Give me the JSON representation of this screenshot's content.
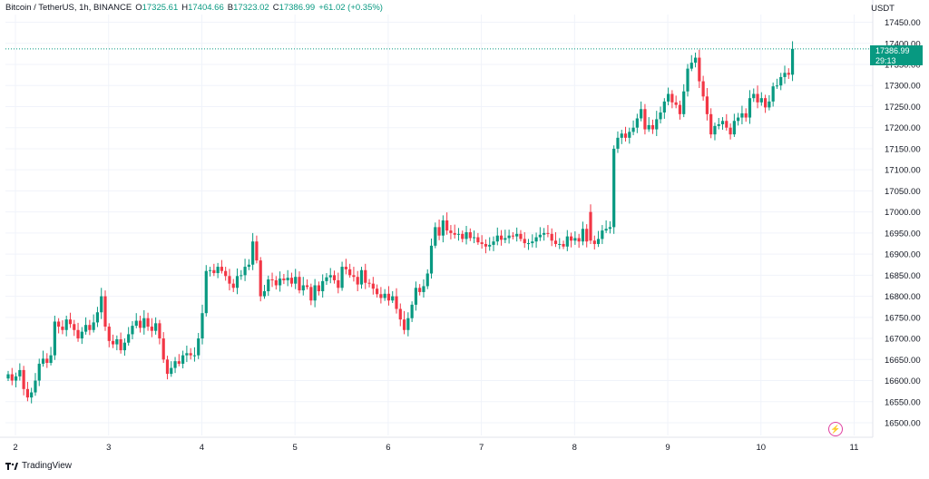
{
  "legend": {
    "symbol": "Bitcoin / TetherUS, 1h, BINANCE",
    "o_label": "O",
    "o": "17325.61",
    "h_label": "H",
    "h": "17404.66",
    "b_label": "B",
    "b": "17323.02",
    "c_label": "C",
    "c": "17386.99",
    "change": "+61.02 (+0.35%)"
  },
  "currency": "USDT",
  "price_tag": {
    "price": "17386.99",
    "countdown": "29:13"
  },
  "footer": {
    "brand": "TradingView"
  },
  "colors": {
    "up": "#089981",
    "down": "#f23645",
    "grid": "#f0f3fa",
    "price_line": "#089981",
    "axis_text": "#131722"
  },
  "chart_data": {
    "type": "candlestick",
    "title": "",
    "y_ticks": [
      "17450.00",
      "17400.00",
      "17350.00",
      "17300.00",
      "17250.00",
      "17200.00",
      "17150.00",
      "17100.00",
      "17050.00",
      "17000.00",
      "16950.00",
      "16900.00",
      "16850.00",
      "16800.00",
      "16750.00",
      "16700.00",
      "16650.00",
      "16600.00",
      "16550.00",
      "16500.00"
    ],
    "ylim": [
      16480,
      17480
    ],
    "x_ticks": [
      "2",
      "3",
      "4",
      "5",
      "6",
      "7",
      "8",
      "9",
      "10",
      "11"
    ],
    "x_tick_index": [
      0,
      24,
      48,
      72,
      96,
      120,
      144,
      168,
      192,
      216
    ],
    "last_price": 17386.99,
    "series": [
      {
        "close": [
          16615,
          16600,
          16610,
          16625,
          16580,
          16560,
          16572,
          16600,
          16640,
          16652,
          16642,
          16660,
          16740,
          16728,
          16720,
          16745,
          16734,
          16720,
          16700,
          16716,
          16732,
          16720,
          16738,
          16762,
          16800,
          16728,
          16694,
          16686,
          16698,
          16672,
          16690,
          16710,
          16730,
          16742,
          16725,
          16748,
          16728,
          16718,
          16736,
          16700,
          16650,
          16616,
          16630,
          16646,
          16640,
          16660,
          16665,
          16660,
          16660,
          16700,
          16760,
          16860,
          16862,
          16855,
          16870,
          16860,
          16848,
          16830,
          16820,
          16848,
          16850,
          16870,
          16875,
          16930,
          16885,
          16800,
          16812,
          16840,
          16838,
          16826,
          16842,
          16838,
          16844,
          16830,
          16846,
          16814,
          16826,
          16822,
          16790,
          16826,
          16812,
          16836,
          16845,
          16850,
          16838,
          16820,
          16870,
          16864,
          16850,
          16846,
          16828,
          16862,
          16832,
          16830,
          16818,
          16805,
          16796,
          16806,
          16790,
          16800,
          16770,
          16745,
          16720,
          16748,
          16780,
          16820,
          16810,
          16824,
          16854,
          16920,
          16964,
          16944,
          16980,
          16956,
          16950,
          16946,
          16948,
          16936,
          16952,
          16938,
          16940,
          16928,
          16924,
          16918,
          16922,
          16930,
          16944,
          16934,
          16938,
          16944,
          16942,
          16948,
          16936,
          16926,
          16926,
          16930,
          16940,
          16946,
          16950,
          16948,
          16932,
          16924,
          16924,
          16918,
          16942,
          16932,
          16938,
          16930,
          16960,
          16930,
          16932,
          16924,
          16936,
          16956,
          16960,
          16964,
          17150,
          17176,
          17186,
          17176,
          17190,
          17200,
          17222,
          17244,
          17196,
          17206,
          17196,
          17220,
          17236,
          17262,
          17280,
          17260,
          17254,
          17232,
          17286,
          17340,
          17354,
          17366,
          17310,
          17274,
          17232,
          17184,
          17204,
          17208,
          17216,
          17200,
          17184,
          17216,
          17224,
          17234,
          17224,
          17270,
          17280,
          17260,
          17270,
          17248,
          17262,
          17298,
          17300,
          17320,
          17330,
          17325.61,
          17386.99
        ],
        "open": [
          16605,
          16615,
          16600,
          16610,
          16625,
          16580,
          16560,
          16572,
          16600,
          16640,
          16652,
          16642,
          16660,
          16740,
          16728,
          16720,
          16745,
          16734,
          16720,
          16700,
          16716,
          16732,
          16720,
          16738,
          16762,
          16800,
          16728,
          16694,
          16686,
          16698,
          16672,
          16690,
          16710,
          16730,
          16742,
          16725,
          16748,
          16728,
          16718,
          16736,
          16700,
          16650,
          16616,
          16630,
          16646,
          16640,
          16660,
          16665,
          16660,
          16660,
          16700,
          16760,
          16860,
          16862,
          16855,
          16870,
          16860,
          16848,
          16830,
          16820,
          16848,
          16850,
          16870,
          16875,
          16930,
          16885,
          16800,
          16812,
          16840,
          16838,
          16826,
          16842,
          16838,
          16844,
          16830,
          16846,
          16814,
          16826,
          16822,
          16790,
          16826,
          16812,
          16836,
          16845,
          16850,
          16838,
          16820,
          16870,
          16864,
          16850,
          16846,
          16828,
          16862,
          16832,
          16830,
          16818,
          16805,
          16796,
          16806,
          16790,
          16800,
          16770,
          16745,
          16720,
          16748,
          16780,
          16820,
          16810,
          16824,
          16854,
          16920,
          16964,
          16944,
          16980,
          16956,
          16950,
          16946,
          16948,
          16936,
          16952,
          16938,
          16940,
          16928,
          16924,
          16918,
          16922,
          16930,
          16944,
          16934,
          16938,
          16944,
          16942,
          16948,
          16936,
          16926,
          16926,
          16930,
          16940,
          16946,
          16950,
          16948,
          16932,
          16924,
          16924,
          16918,
          16942,
          16932,
          16938,
          16930,
          16960,
          17000,
          16932,
          16924,
          16936,
          16956,
          16960,
          16964,
          17150,
          17176,
          17186,
          17176,
          17190,
          17200,
          17222,
          17244,
          17196,
          17206,
          17196,
          17220,
          17236,
          17262,
          17280,
          17260,
          17254,
          17232,
          17286,
          17340,
          17354,
          17366,
          17310,
          17274,
          17232,
          17184,
          17204,
          17208,
          17216,
          17200,
          17184,
          17216,
          17224,
          17234,
          17224,
          17270,
          17280,
          17260,
          17270,
          17248,
          17262,
          17298,
          17300,
          17320,
          17330,
          17325.61
        ]
      }
    ]
  }
}
